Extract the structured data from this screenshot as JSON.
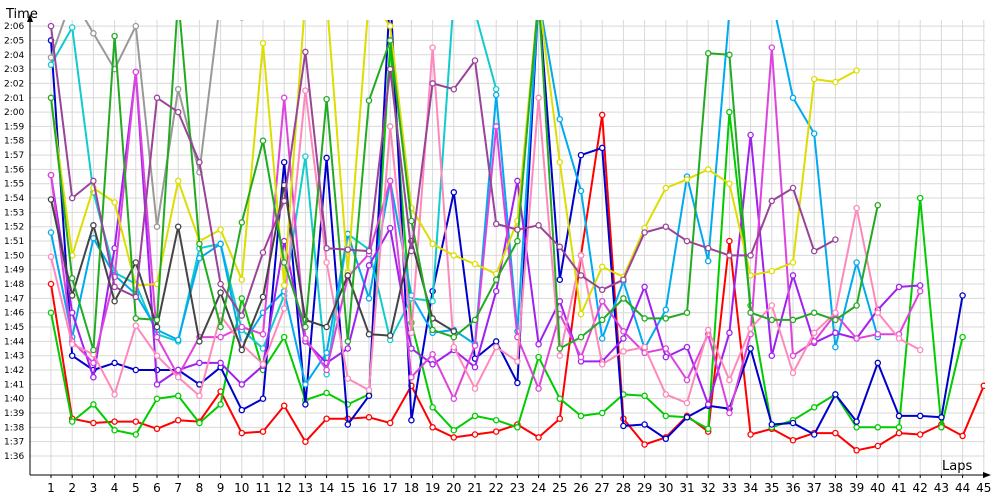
{
  "chart_data": {
    "type": "line",
    "xlabel": "Laps",
    "ylabel": "Time",
    "x": [
      1,
      2,
      3,
      4,
      5,
      6,
      7,
      8,
      9,
      10,
      11,
      12,
      13,
      14,
      15,
      16,
      17,
      18,
      19,
      20,
      21,
      22,
      23,
      24,
      25,
      26,
      27,
      28,
      29,
      30,
      31,
      32,
      33,
      34,
      35,
      36,
      37,
      38,
      39,
      40,
      41,
      42,
      43,
      44,
      45
    ],
    "x_ticks": [
      "1",
      "2",
      "3",
      "4",
      "5",
      "6",
      "7",
      "8",
      "9",
      "10",
      "11",
      "12",
      "13",
      "14",
      "15",
      "16",
      "17",
      "18",
      "19",
      "20",
      "21",
      "22",
      "23",
      "24",
      "25",
      "26",
      "27",
      "28",
      "29",
      "30",
      "31",
      "32",
      "33",
      "34",
      "35",
      "36",
      "37",
      "38",
      "39",
      "40",
      "41",
      "42",
      "43",
      "44",
      "45"
    ],
    "y_ticks": [
      "1:36",
      "1:37",
      "1:38",
      "1:39",
      "1:40",
      "1:41",
      "1:42",
      "1:43",
      "1:44",
      "1:45",
      "1:46",
      "1:47",
      "1:48",
      "1:49",
      "1:50",
      "1:51",
      "1:52",
      "1:53",
      "1:54",
      "1:55",
      "1:56",
      "1:57",
      "1:58",
      "1:59",
      "2:00",
      "2:01",
      "2:02",
      "2:03",
      "2:04",
      "2:05",
      "2:06"
    ],
    "y_unit": "seconds",
    "ylim": [
      95,
      128.5
    ],
    "grid": true,
    "series": [
      {
        "color": "#ff0000",
        "values": [
          108.0,
          98.6,
          98.3,
          98.4,
          98.4,
          97.9,
          98.5,
          98.4,
          100.5,
          97.6,
          97.7,
          99.5,
          97.0,
          98.6,
          98.6,
          98.7,
          98.3,
          100.9,
          98.0,
          97.3,
          97.5,
          97.7,
          98.2,
          97.3,
          98.6,
          110.0,
          119.8,
          98.6,
          96.8,
          97.3,
          98.8,
          97.7,
          111.0,
          97.5,
          97.9,
          97.1,
          97.6,
          97.6,
          96.4,
          96.7,
          97.6,
          97.5,
          98.2,
          97.4,
          100.9
        ]
      },
      {
        "color": "#00cc00",
        "values": [
          106.0,
          98.4,
          99.6,
          97.8,
          97.5,
          100.0,
          100.2,
          98.3,
          99.6,
          107.0,
          102.0,
          104.3,
          99.9,
          100.4,
          99.6,
          100.3,
          124.7,
          105.3,
          99.4,
          97.8,
          98.8,
          98.5,
          98.0,
          102.9,
          100.0,
          98.8,
          99.0,
          100.3,
          100.2,
          98.8,
          98.7,
          97.9,
          120.0,
          106.5,
          98.0,
          98.5,
          99.4,
          100.3,
          98.0,
          98.0,
          98.0,
          114.0,
          98.0,
          104.3,
          null
        ]
      },
      {
        "color": "#0000cc",
        "values": [
          125.0,
          103.0,
          102.0,
          102.5,
          102.0,
          102.0,
          102.0,
          101.0,
          102.2,
          99.2,
          100.0,
          116.5,
          99.6,
          116.8,
          98.2,
          100.2,
          128.5,
          98.5,
          107.5,
          114.4,
          102.8,
          104.0,
          101.1,
          128.0,
          108.3,
          117.0,
          117.5,
          98.1,
          98.2,
          97.2,
          98.7,
          99.5,
          99.3,
          103.5,
          98.2,
          98.3,
          97.5,
          100.3,
          98.4,
          102.5,
          98.8,
          98.8,
          98.7,
          107.2,
          null
        ]
      },
      {
        "color": "#11cccc",
        "values": [
          123.3,
          125.9,
          114.4,
          108.8,
          108.0,
          104.5,
          104.0,
          110.5,
          110.8,
          104.8,
          103.5,
          107.2,
          116.9,
          101.7,
          111.5,
          110.4,
          104.1,
          107.0,
          106.8,
          128.0,
          127.0,
          121.6,
          null,
          null,
          null,
          null,
          null,
          null,
          null,
          null,
          null,
          null,
          null,
          null,
          null,
          null,
          null,
          null,
          null,
          null,
          null,
          null,
          null,
          null,
          null
        ]
      },
      {
        "color": "#00aaee",
        "values": [
          111.6,
          104.3,
          111.2,
          108.6,
          107.3,
          104.8,
          104.1,
          109.8,
          110.8,
          103.7,
          106.0,
          107.5,
          101.0,
          103.2,
          111.5,
          107.0,
          115.2,
          107.2,
          104.6,
          104.8,
          103.8,
          121.2,
          104.7,
          128.0,
          119.5,
          114.5,
          104.2,
          108.2,
          103.5,
          106.2,
          115.5,
          109.6,
          127.0,
          128.5,
          128.0,
          121.0,
          118.5,
          103.6,
          109.5,
          104.3,
          null,
          null,
          null,
          null,
          null
        ]
      },
      {
        "color": "#9999ff",
        "values": [
          null,
          null,
          null,
          null,
          null,
          null,
          null,
          null,
          null,
          null,
          null,
          null,
          null,
          null,
          null,
          null,
          null,
          null,
          null,
          null,
          null,
          null,
          null,
          null,
          null,
          null,
          null,
          null,
          null,
          null,
          null,
          null,
          null,
          null,
          null,
          null,
          null,
          null,
          null,
          null,
          null,
          null,
          null,
          null,
          null
        ]
      },
      {
        "color": "#a020f0",
        "values": [
          115.6,
          106.0,
          101.5,
          110.5,
          122.8,
          101.0,
          102.0,
          102.5,
          102.5,
          101.0,
          102.3,
          111.0,
          104.0,
          102.5,
          103.5,
          109.3,
          111.9,
          103.5,
          102.4,
          103.4,
          102.2,
          107.5,
          115.2,
          103.8,
          106.8,
          102.6,
          102.6,
          104.2,
          107.8,
          102.9,
          103.6,
          99.6,
          104.6,
          118.4,
          103.0,
          108.6,
          103.9,
          104.6,
          104.2,
          106.2,
          107.8,
          107.9,
          null,
          null,
          null
        ]
      },
      {
        "color": "#dd44dd",
        "values": [
          115.6,
          104.0,
          102.5,
          108.5,
          122.8,
          104.3,
          101.6,
          104.3,
          104.3,
          105.0,
          104.5,
          121.0,
          104.2,
          102.0,
          108.5,
          110.1,
          115.2,
          101.5,
          103.1,
          100.0,
          103.7,
          119.0,
          104.3,
          100.7,
          105.9,
          102.9,
          106.8,
          104.7,
          103.2,
          103.5,
          101.3,
          104.5,
          99.0,
          104.5,
          124.5,
          103.0,
          104.0,
          105.9,
          104.2,
          104.5,
          104.5,
          107.5,
          null,
          null,
          null
        ]
      },
      {
        "color": "#ff88bb",
        "values": [
          109.9,
          103.8,
          103.1,
          100.3,
          105.1,
          103.0,
          101.5,
          100.2,
          105.8,
          103.8,
          102.4,
          106.3,
          121.5,
          109.5,
          101.4,
          100.6,
          119.0,
          104.6,
          124.5,
          103.6,
          100.7,
          103.6,
          102.6,
          121.0,
          103.0,
          110.0,
          102.4,
          103.3,
          103.6,
          100.3,
          99.7,
          104.8,
          101.3,
          104.9,
          106.5,
          101.8,
          104.6,
          106.0,
          113.3,
          106.0,
          104.2,
          103.4,
          null,
          null,
          null
        ]
      },
      {
        "color": "#dddd00",
        "values": [
          121.0,
          110.0,
          114.7,
          113.7,
          107.9,
          108.0,
          115.2,
          111.0,
          111.8,
          108.3,
          124.8,
          107.9,
          128.0,
          128.0,
          108.8,
          128.0,
          126.0,
          113.3,
          110.8,
          110.0,
          109.4,
          108.7,
          112.4,
          128.0,
          116.5,
          105.9,
          109.2,
          108.5,
          111.9,
          114.7,
          115.3,
          116.0,
          115.0,
          108.6,
          108.9,
          109.5,
          122.3,
          122.1,
          122.9,
          null,
          null,
          null,
          null,
          null,
          null
        ]
      },
      {
        "color": "#999999",
        "values": [
          123.8,
          128.0,
          125.5,
          123.0,
          126.0,
          112.0,
          121.6,
          115.8,
          128.0,
          126.6,
          128.0,
          128.0,
          128.0,
          128.0,
          128.5,
          null,
          null,
          null,
          null,
          null,
          null,
          null,
          null,
          null,
          null,
          null,
          null,
          null,
          null,
          null,
          null,
          null,
          null,
          null,
          null,
          null,
          null,
          null,
          null,
          null,
          null,
          null,
          null,
          null,
          null
        ]
      },
      {
        "color": "#444444",
        "values": [
          113.9,
          107.2,
          112.1,
          106.8,
          109.5,
          105.0,
          112.0,
          104.0,
          107.4,
          103.4,
          107.1,
          114.9,
          105.5,
          105.0,
          108.6,
          104.5,
          104.4,
          111.0,
          105.6,
          104.7,
          null,
          null,
          null,
          null,
          null,
          null,
          null,
          null,
          null,
          null,
          null,
          null,
          null,
          null,
          null,
          null,
          null,
          null,
          null,
          null,
          null,
          null,
          null,
          null,
          null
        ]
      },
      {
        "color": "#22aa22",
        "values": [
          121.0,
          108.4,
          103.4,
          125.3,
          105.6,
          105.5,
          128.0,
          110.8,
          105.0,
          112.3,
          118.0,
          109.5,
          105.0,
          120.9,
          104.0,
          120.8,
          125.0,
          112.4,
          104.8,
          104.3,
          105.5,
          108.3,
          111.0,
          128.0,
          103.5,
          104.3,
          105.5,
          107.0,
          105.6,
          105.6,
          106.0,
          124.1,
          124.0,
          106.0,
          105.5,
          105.5,
          106.0,
          105.5,
          106.5,
          113.5,
          null,
          null,
          null,
          null,
          null
        ]
      },
      {
        "color": "#994499",
        "values": [
          126.0,
          114.0,
          115.2,
          107.8,
          107.1,
          121.0,
          120.0,
          116.5,
          108.0,
          105.8,
          110.2,
          113.8,
          124.2,
          110.5,
          110.4,
          110.3,
          123.0,
          110.3,
          122.0,
          121.6,
          123.6,
          112.2,
          111.8,
          112.1,
          110.6,
          108.6,
          107.6,
          108.3,
          111.6,
          112.0,
          111.0,
          110.5,
          110.0,
          110.0,
          113.8,
          114.7,
          110.3,
          111.1,
          null,
          null,
          null,
          null,
          null,
          null,
          null
        ]
      },
      {
        "color": "#aa55aa",
        "values": [
          null,
          null,
          null,
          null,
          null,
          null,
          null,
          null,
          null,
          null,
          null,
          null,
          null,
          null,
          null,
          null,
          null,
          null,
          null,
          null,
          null,
          null,
          null,
          null,
          null,
          null,
          null,
          null,
          null,
          null,
          null,
          null,
          null,
          null,
          null,
          null,
          null,
          null,
          null,
          null,
          null,
          null,
          null,
          null,
          null
        ]
      }
    ]
  }
}
